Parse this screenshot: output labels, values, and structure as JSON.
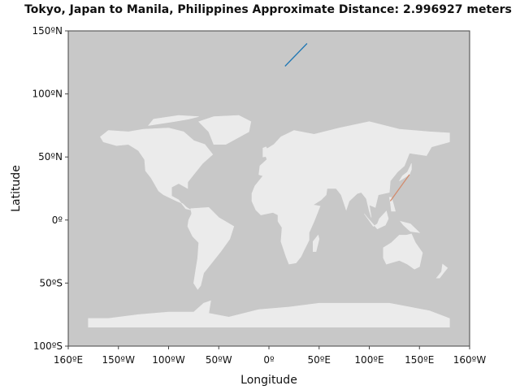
{
  "chart_data": {
    "type": "line",
    "title": "Tokyo, Japan to Manila, Philippines Approximate Distance: 2.996927 meters",
    "xlabel": "Longitude",
    "ylabel": "Latitude",
    "xlim": [
      -200,
      200
    ],
    "ylim": [
      -100,
      150
    ],
    "x_ticks": [
      {
        "value": -200,
        "label": "160ºE"
      },
      {
        "value": -150,
        "label": "150ºW"
      },
      {
        "value": -100,
        "label": "100ºW"
      },
      {
        "value": -50,
        "label": "50ºW"
      },
      {
        "value": 0,
        "label": "0º"
      },
      {
        "value": 50,
        "label": "50ºE"
      },
      {
        "value": 100,
        "label": "100ºE"
      },
      {
        "value": 150,
        "label": "150ºE"
      },
      {
        "value": 200,
        "label": "160ºW"
      }
    ],
    "y_ticks": [
      {
        "value": 150,
        "label": "150ºN"
      },
      {
        "value": 100,
        "label": "100ºN"
      },
      {
        "value": 50,
        "label": "50ºN"
      },
      {
        "value": 0,
        "label": "0º"
      },
      {
        "value": -50,
        "label": "50ºS"
      },
      {
        "value": -100,
        "label": "100ºS"
      }
    ],
    "grid": false,
    "background": "#c8c8c8",
    "land_color": "#ebebeb",
    "series": [
      {
        "color": "#1f77b4",
        "x": [
          16,
          38
        ],
        "y": [
          122,
          140
        ]
      },
      {
        "color": "#d28c6e",
        "x": [
          121,
          140
        ],
        "y": [
          15,
          36
        ]
      }
    ]
  }
}
